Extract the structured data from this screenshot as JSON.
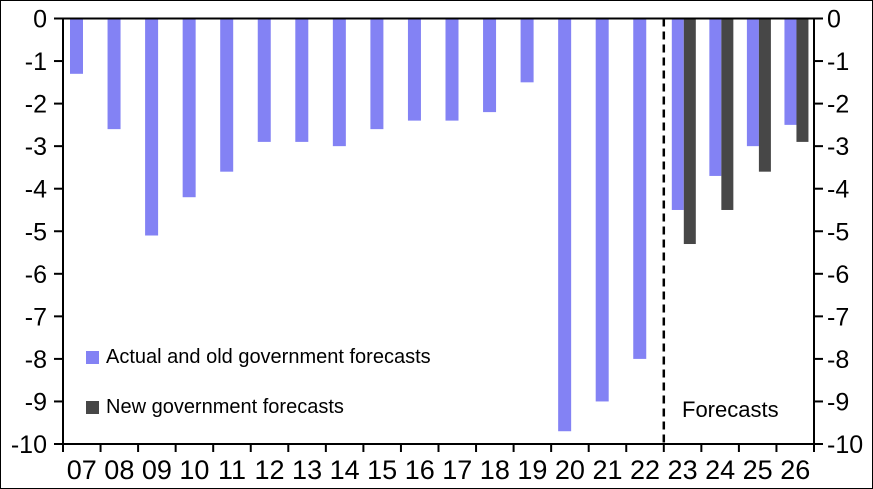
{
  "chart_data": {
    "type": "bar",
    "categories": [
      "07",
      "08",
      "09",
      "10",
      "11",
      "12",
      "13",
      "14",
      "15",
      "16",
      "17",
      "18",
      "19",
      "20",
      "21",
      "22",
      "23",
      "24",
      "25",
      "26"
    ],
    "series": [
      {
        "name": "Actual and old government forecasts",
        "color": "#8382F4",
        "values": [
          -1.3,
          -2.6,
          -5.1,
          -4.2,
          -3.6,
          -2.9,
          -2.9,
          -3.0,
          -2.6,
          -2.4,
          -2.4,
          -2.2,
          -1.5,
          -9.7,
          -9.0,
          -8.0,
          -4.5,
          -3.7,
          -3.0,
          -2.5
        ]
      },
      {
        "name": "New government forecasts",
        "color": "#474747",
        "values": [
          null,
          null,
          null,
          null,
          null,
          null,
          null,
          null,
          null,
          null,
          null,
          null,
          null,
          null,
          null,
          null,
          -5.3,
          -4.5,
          -3.6,
          -2.9
        ]
      }
    ],
    "ylim": [
      -10,
      0
    ],
    "y_ticks": [
      0,
      -1,
      -2,
      -3,
      -4,
      -5,
      -6,
      -7,
      -8,
      -9,
      -10
    ],
    "grid": false,
    "legend_position": "inside-lower-left",
    "y_axis_sides": [
      "left",
      "right"
    ],
    "axis_color": "#000000",
    "background_color": "#FFFFFF",
    "annotations": {
      "forecasts_label": "Forecasts",
      "divider_after_category": "22",
      "divider_style": "dashed"
    }
  }
}
